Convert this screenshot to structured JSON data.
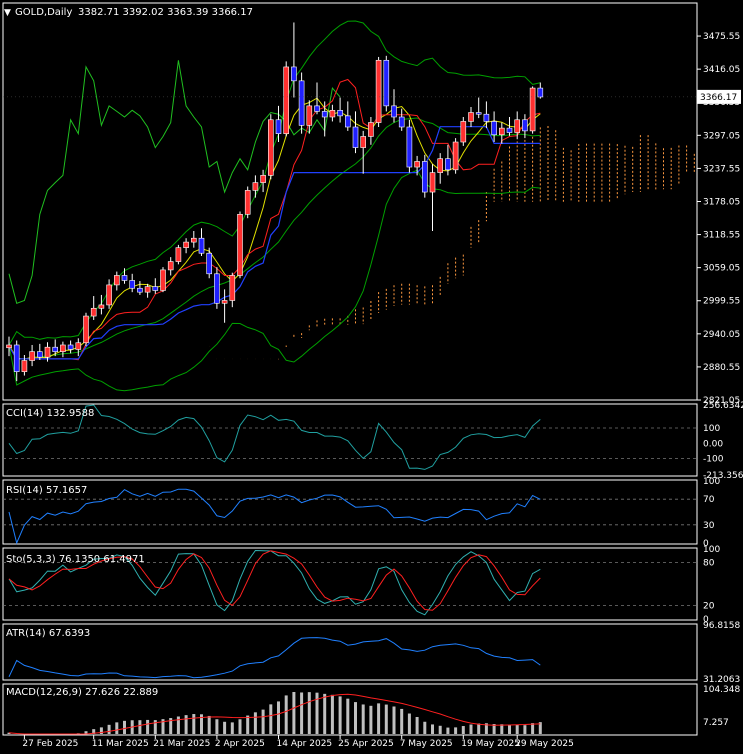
{
  "window": {
    "symbol_label": "GOLD,Daily",
    "ohlc_label": "3382.71 3392.02 3363.39 3366.17",
    "current_price_tag": "3366.17"
  },
  "colors": {
    "background": "#000000",
    "grid": "#1a1a1a",
    "axis": "#ffffff",
    "candle_bull": "#ff3030",
    "candle_bear": "#2020ff",
    "bollinger": "#00a000",
    "tenkan": "#ff2020",
    "kijun": "#2040ff",
    "chikou": "#20c020",
    "ma_yellow": "#e0e000",
    "kumo": "#ff9a40",
    "cci": "#20a0a0",
    "rsi": "#2080ff",
    "stoch_main": "#30b0b0",
    "stoch_signal": "#ff2020",
    "atr": "#2080ff",
    "macd_hist": "#c0c0c0",
    "macd_signal": "#ff2020",
    "level_dash": "#777777"
  },
  "chart_data": [
    {
      "type": "candlestick",
      "panel": "price",
      "title": "GOLD,Daily",
      "ylim": [
        2821.05,
        3535.0
      ],
      "y_ticks": [
        "3475.55",
        "3416.05",
        "3356.55",
        "3297.05",
        "3237.55",
        "3178.05",
        "3118.55",
        "3059.05",
        "2999.55",
        "2940.05",
        "2880.55",
        "2821.05"
      ],
      "x_ticks": [
        "27 Feb 2025",
        "11 Mar 2025",
        "21 Mar 2025",
        "2 Apr 2025",
        "14 Apr 2025",
        "25 Apr 2025",
        "7 May 2025",
        "19 May 2025",
        "29 May 2025"
      ],
      "x_tick_bars": [
        2,
        11,
        19,
        27,
        35,
        43,
        51,
        59,
        66
      ],
      "last_close": 3366.17,
      "candles": [
        [
          2915,
          2935,
          2900,
          2920
        ],
        [
          2920,
          2928,
          2855,
          2872
        ],
        [
          2872,
          2902,
          2865,
          2892
        ],
        [
          2892,
          2920,
          2882,
          2908
        ],
        [
          2908,
          2922,
          2893,
          2898
        ],
        [
          2898,
          2925,
          2890,
          2916
        ],
        [
          2916,
          2930,
          2900,
          2908
        ],
        [
          2908,
          2926,
          2898,
          2920
        ],
        [
          2920,
          2928,
          2905,
          2912
        ],
        [
          2912,
          2932,
          2900,
          2924
        ],
        [
          2924,
          2978,
          2918,
          2972
        ],
        [
          2972,
          3008,
          2965,
          2986
        ],
        [
          2986,
          3010,
          2975,
          2992
        ],
        [
          2992,
          3038,
          2985,
          3028
        ],
        [
          3028,
          3052,
          3018,
          3045
        ],
        [
          3045,
          3058,
          3030,
          3036
        ],
        [
          3036,
          3048,
          3015,
          3022
        ],
        [
          3022,
          3035,
          3010,
          3015
        ],
        [
          3015,
          3030,
          3005,
          3025
        ],
        [
          3025,
          3040,
          3012,
          3018
        ],
        [
          3018,
          3060,
          3015,
          3055
        ],
        [
          3055,
          3078,
          3045,
          3070
        ],
        [
          3070,
          3100,
          3065,
          3095
        ],
        [
          3095,
          3112,
          3085,
          3105
        ],
        [
          3105,
          3125,
          3095,
          3112
        ],
        [
          3112,
          3130,
          3080,
          3085
        ],
        [
          3085,
          3095,
          3040,
          3048
        ],
        [
          3048,
          3060,
          2985,
          2995
        ],
        [
          2995,
          3020,
          2960,
          3000
        ],
        [
          3000,
          3050,
          2988,
          3045
        ],
        [
          3045,
          3160,
          3040,
          3155
        ],
        [
          3155,
          3205,
          3148,
          3198
        ],
        [
          3198,
          3225,
          3185,
          3212
        ],
        [
          3212,
          3235,
          3195,
          3225
        ],
        [
          3225,
          3335,
          3218,
          3325
        ],
        [
          3325,
          3350,
          3285,
          3300
        ],
        [
          3300,
          3430,
          3295,
          3420
        ],
        [
          3420,
          3500,
          3365,
          3395
        ],
        [
          3395,
          3410,
          3300,
          3315
        ],
        [
          3315,
          3360,
          3300,
          3350
        ],
        [
          3350,
          3392,
          3335,
          3340
        ],
        [
          3340,
          3358,
          3295,
          3330
        ],
        [
          3330,
          3352,
          3322,
          3342
        ],
        [
          3342,
          3365,
          3320,
          3332
        ],
        [
          3332,
          3358,
          3305,
          3312
        ],
        [
          3312,
          3340,
          3265,
          3275
        ],
        [
          3275,
          3305,
          3228,
          3295
        ],
        [
          3295,
          3330,
          3280,
          3320
        ],
        [
          3320,
          3438,
          3312,
          3432
        ],
        [
          3432,
          3440,
          3340,
          3350
        ],
        [
          3350,
          3380,
          3320,
          3330
        ],
        [
          3330,
          3345,
          3305,
          3312
        ],
        [
          3312,
          3325,
          3230,
          3240
        ],
        [
          3240,
          3260,
          3225,
          3250
        ],
        [
          3250,
          3262,
          3185,
          3195
        ],
        [
          3195,
          3245,
          3125,
          3230
        ],
        [
          3230,
          3265,
          3210,
          3255
        ],
        [
          3255,
          3280,
          3225,
          3235
        ],
        [
          3235,
          3292,
          3228,
          3285
        ],
        [
          3285,
          3330,
          3278,
          3322
        ],
        [
          3322,
          3348,
          3312,
          3338
        ],
        [
          3338,
          3365,
          3328,
          3335
        ],
        [
          3335,
          3358,
          3310,
          3322
        ],
        [
          3322,
          3340,
          3285,
          3298
        ],
        [
          3298,
          3320,
          3282,
          3310
        ],
        [
          3310,
          3330,
          3296,
          3302
        ],
        [
          3302,
          3340,
          3290,
          3325
        ],
        [
          3325,
          3335,
          3292,
          3305
        ],
        [
          3305,
          3385,
          3300,
          3382
        ],
        [
          3382,
          3392,
          3363,
          3366
        ]
      ]
    },
    {
      "type": "line",
      "panel": "cci",
      "title": "CCI(14) 132.9588",
      "ylim": [
        -213.3568,
        256.6342
      ],
      "y_ticks": [
        "256.6342",
        "100",
        "0.00",
        "-100",
        "-213.3568"
      ],
      "levels": [
        100,
        -100
      ]
    },
    {
      "type": "line",
      "panel": "rsi",
      "title": "RSI(14) 57.1657",
      "ylim": [
        0,
        100
      ],
      "y_ticks": [
        "100",
        "70",
        "30",
        "0"
      ],
      "levels": [
        70,
        30
      ]
    },
    {
      "type": "line",
      "panel": "stochastic",
      "title": "Sto(5,3,3) 76.1350 61.4971",
      "ylim": [
        0,
        100
      ],
      "y_ticks": [
        "100",
        "80",
        "20",
        "0"
      ],
      "levels": [
        80,
        20
      ]
    },
    {
      "type": "line",
      "panel": "atr",
      "title": "ATR(14) 67.6393",
      "ylim": [
        31.2063,
        96.8158
      ],
      "y_ticks": [
        "96.8158",
        "31.2063"
      ]
    },
    {
      "type": "bar",
      "panel": "macd",
      "title": "MACD(12,26,9) 27.626 22.889",
      "ylim": [
        7.257,
        104.348
      ],
      "y_ticks": [
        "104.348",
        "7.257"
      ]
    }
  ]
}
